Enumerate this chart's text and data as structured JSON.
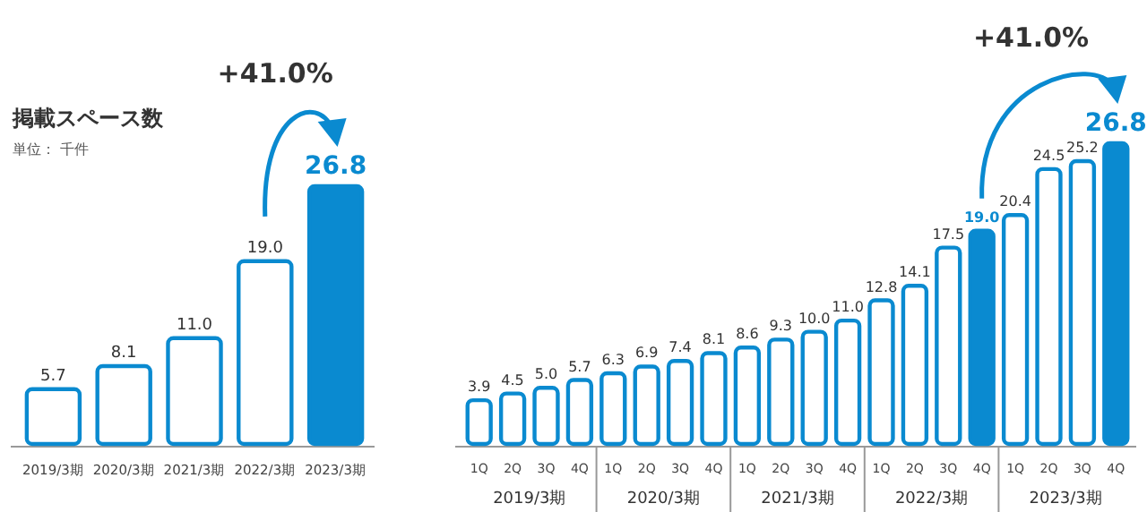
{
  "chart_data": [
    {
      "type": "bar",
      "title": "掲載スペース数",
      "subtitle": "単位： 千件",
      "categories": [
        "2019/3期",
        "2020/3期",
        "2021/3期",
        "2022/3期",
        "2023/3期"
      ],
      "values": [
        5.7,
        8.1,
        11.0,
        19.0,
        26.8
      ],
      "color": "#0a8ad0",
      "colors": [
        "#ffffff",
        "#ffffff",
        "#ffffff",
        "#ffffff",
        "#0a8ad0"
      ],
      "value_labels": [
        "5.7",
        "8.1",
        "11.0",
        "19.0",
        "26.8"
      ],
      "annotations": [
        "+41.0%"
      ]
    },
    {
      "type": "bar",
      "categories": [
        "1Q",
        "2Q",
        "3Q",
        "4Q",
        "1Q",
        "2Q",
        "3Q",
        "4Q",
        "1Q",
        "2Q",
        "3Q",
        "4Q",
        "1Q",
        "2Q",
        "3Q",
        "4Q",
        "1Q",
        "2Q",
        "3Q",
        "4Q"
      ],
      "values": [
        3.9,
        4.5,
        5.0,
        5.7,
        6.3,
        6.9,
        7.4,
        8.1,
        8.6,
        9.3,
        10.0,
        11.0,
        12.8,
        14.1,
        17.5,
        19.0,
        20.4,
        24.5,
        25.2,
        26.8
      ],
      "color": "#0a8ad0",
      "colors": [
        "#ffffff",
        "#ffffff",
        "#ffffff",
        "#ffffff",
        "#ffffff",
        "#ffffff",
        "#ffffff",
        "#ffffff",
        "#ffffff",
        "#ffffff",
        "#ffffff",
        "#ffffff",
        "#ffffff",
        "#ffffff",
        "#ffffff",
        "#0a8ad0",
        "#ffffff",
        "#ffffff",
        "#ffffff",
        "#0a8ad0"
      ],
      "value_labels": [
        "3.9",
        "4.5",
        "5.0",
        "5.7",
        "6.3",
        "6.9",
        "7.4",
        "8.1",
        "8.6",
        "9.3",
        "10.0",
        "11.0",
        "12.8",
        "14.1",
        "17.5",
        "19.0",
        "20.4",
        "24.5",
        "25.2",
        "26.8"
      ],
      "annotations": [
        "+41.0%",
        "2019/3期",
        "2020/3期",
        "2021/3期",
        "2022/3期",
        "2023/3期"
      ]
    }
  ]
}
